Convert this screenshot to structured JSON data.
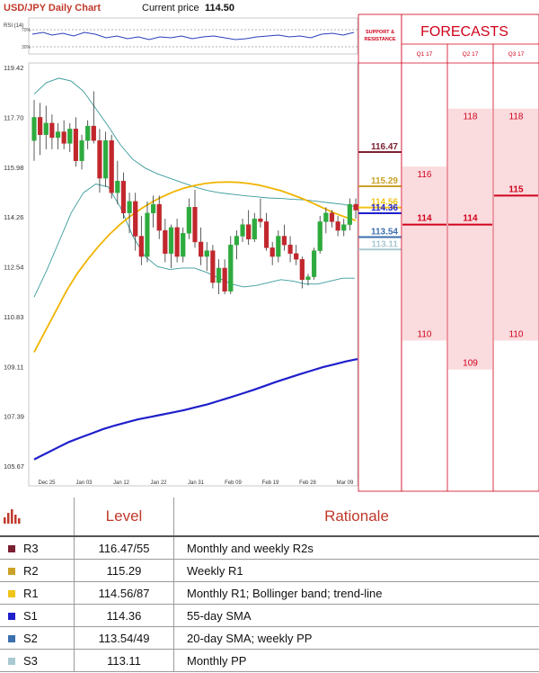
{
  "header": {
    "pair_title": "USD/JPY Daily Chart",
    "price_label": "Current price",
    "price_value": "114.50"
  },
  "rsi": {
    "label": "RSI (14)",
    "level_high": "70%",
    "level_low": "30%"
  },
  "colors": {
    "candle_up": "#2eab3e",
    "candle_down": "#c1272d",
    "sma20": "#f0b400",
    "sma55": "#1f1fcc",
    "bollinger": "#3a9a9a",
    "r3": "#7b2031",
    "r2": "#c9a227",
    "r1": "#f0c419",
    "s1": "#1f1fcc",
    "s2": "#3b6fae",
    "s3": "#a8c8d2",
    "forecast_red": "#d0021b",
    "forecast_fill": "#fadbde"
  },
  "chart_data": {
    "type": "line",
    "title": "USD/JPY Daily Chart",
    "y_ticks": [
      "119.42",
      "117.70",
      "115.98",
      "114.26",
      "112.54",
      "110.83",
      "109.11",
      "107.39",
      "105.67"
    ],
    "ylim": [
      105.67,
      119.42
    ],
    "x_ticks": [
      "Dec 25",
      "Jan 03",
      "Jan 12",
      "Jan 22",
      "Jan 31",
      "Feb 09",
      "Feb 19",
      "Feb 28",
      "Mar 09"
    ],
    "candles": [
      {
        "o": 116.9,
        "h": 118.3,
        "l": 116.2,
        "c": 117.7
      },
      {
        "o": 117.7,
        "h": 118.2,
        "l": 116.4,
        "c": 117.1
      },
      {
        "o": 117.1,
        "h": 118.1,
        "l": 116.6,
        "c": 117.5
      },
      {
        "o": 117.5,
        "h": 117.8,
        "l": 116.6,
        "c": 117.0
      },
      {
        "o": 117.0,
        "h": 117.5,
        "l": 116.6,
        "c": 117.2
      },
      {
        "o": 117.2,
        "h": 117.6,
        "l": 116.6,
        "c": 116.8
      },
      {
        "o": 116.8,
        "h": 117.5,
        "l": 116.5,
        "c": 117.3
      },
      {
        "o": 117.3,
        "h": 117.7,
        "l": 116.0,
        "c": 116.2
      },
      {
        "o": 116.2,
        "h": 117.1,
        "l": 115.9,
        "c": 116.9
      },
      {
        "o": 116.9,
        "h": 117.6,
        "l": 116.6,
        "c": 117.4
      },
      {
        "o": 117.4,
        "h": 118.6,
        "l": 116.8,
        "c": 116.9
      },
      {
        "o": 116.9,
        "h": 117.3,
        "l": 115.1,
        "c": 115.6
      },
      {
        "o": 115.6,
        "h": 117.2,
        "l": 115.3,
        "c": 116.9
      },
      {
        "o": 116.9,
        "h": 117.1,
        "l": 114.9,
        "c": 115.1
      },
      {
        "o": 115.1,
        "h": 116.2,
        "l": 114.7,
        "c": 115.5
      },
      {
        "o": 115.5,
        "h": 115.8,
        "l": 114.2,
        "c": 114.4
      },
      {
        "o": 114.4,
        "h": 115.1,
        "l": 113.7,
        "c": 114.8
      },
      {
        "o": 114.8,
        "h": 115.1,
        "l": 113.1,
        "c": 113.6
      },
      {
        "o": 113.6,
        "h": 114.3,
        "l": 112.6,
        "c": 112.9
      },
      {
        "o": 112.9,
        "h": 114.8,
        "l": 112.7,
        "c": 114.4
      },
      {
        "o": 114.4,
        "h": 115.0,
        "l": 113.9,
        "c": 114.7
      },
      {
        "o": 114.7,
        "h": 115.0,
        "l": 113.5,
        "c": 113.8
      },
      {
        "o": 113.8,
        "h": 114.2,
        "l": 112.7,
        "c": 113.0
      },
      {
        "o": 113.0,
        "h": 114.0,
        "l": 112.5,
        "c": 113.9
      },
      {
        "o": 113.9,
        "h": 114.2,
        "l": 112.7,
        "c": 112.9
      },
      {
        "o": 112.9,
        "h": 113.9,
        "l": 112.7,
        "c": 113.7
      },
      {
        "o": 113.7,
        "h": 114.9,
        "l": 113.5,
        "c": 114.6
      },
      {
        "o": 114.6,
        "h": 115.2,
        "l": 113.2,
        "c": 113.4
      },
      {
        "o": 113.4,
        "h": 113.9,
        "l": 112.6,
        "c": 112.9
      },
      {
        "o": 112.9,
        "h": 113.4,
        "l": 112.4,
        "c": 113.1
      },
      {
        "o": 113.1,
        "h": 113.3,
        "l": 111.8,
        "c": 112.0
      },
      {
        "o": 112.0,
        "h": 112.8,
        "l": 111.6,
        "c": 112.5
      },
      {
        "o": 112.5,
        "h": 112.8,
        "l": 111.6,
        "c": 111.7
      },
      {
        "o": 111.7,
        "h": 113.6,
        "l": 111.6,
        "c": 113.3
      },
      {
        "o": 113.3,
        "h": 113.8,
        "l": 112.8,
        "c": 113.6
      },
      {
        "o": 113.6,
        "h": 114.2,
        "l": 113.4,
        "c": 114.0
      },
      {
        "o": 114.0,
        "h": 114.5,
        "l": 113.3,
        "c": 113.5
      },
      {
        "o": 113.5,
        "h": 114.4,
        "l": 113.4,
        "c": 114.2
      },
      {
        "o": 114.2,
        "h": 114.9,
        "l": 113.9,
        "c": 114.1
      },
      {
        "o": 114.1,
        "h": 114.4,
        "l": 113.1,
        "c": 113.2
      },
      {
        "o": 113.2,
        "h": 113.4,
        "l": 112.6,
        "c": 112.9
      },
      {
        "o": 112.9,
        "h": 113.8,
        "l": 112.7,
        "c": 113.6
      },
      {
        "o": 113.6,
        "h": 114.0,
        "l": 113.1,
        "c": 113.3
      },
      {
        "o": 113.3,
        "h": 113.6,
        "l": 112.7,
        "c": 113.0
      },
      {
        "o": 113.0,
        "h": 113.3,
        "l": 112.6,
        "c": 112.8
      },
      {
        "o": 112.8,
        "h": 112.9,
        "l": 111.8,
        "c": 112.1
      },
      {
        "o": 112.1,
        "h": 112.3,
        "l": 111.9,
        "c": 112.2
      },
      {
        "o": 112.2,
        "h": 113.2,
        "l": 112.1,
        "c": 113.1
      },
      {
        "o": 113.1,
        "h": 114.3,
        "l": 113.0,
        "c": 114.1
      },
      {
        "o": 114.1,
        "h": 114.6,
        "l": 113.7,
        "c": 114.4
      },
      {
        "o": 114.4,
        "h": 114.5,
        "l": 113.9,
        "c": 114.1
      },
      {
        "o": 114.1,
        "h": 114.3,
        "l": 113.6,
        "c": 113.8
      },
      {
        "o": 113.8,
        "h": 114.2,
        "l": 113.6,
        "c": 114.0
      },
      {
        "o": 114.0,
        "h": 114.9,
        "l": 113.8,
        "c": 114.7
      },
      {
        "o": 114.7,
        "h": 114.9,
        "l": 114.2,
        "c": 114.5
      }
    ],
    "sma20": [
      109.6,
      110.3,
      111.0,
      111.7,
      112.3,
      112.8,
      113.25,
      113.65,
      114.0,
      114.3,
      114.55,
      114.78,
      114.97,
      115.13,
      115.26,
      115.35,
      115.42,
      115.46,
      115.47,
      115.46,
      115.42,
      115.36,
      115.27,
      115.17,
      115.04,
      114.9,
      114.74,
      114.57,
      114.4,
      114.26,
      114.14
    ],
    "sma55": [
      105.9,
      106.1,
      106.3,
      106.5,
      106.65,
      106.8,
      106.95,
      107.07,
      107.18,
      107.28,
      107.36,
      107.44,
      107.52,
      107.6,
      107.7,
      107.8,
      107.92,
      108.04,
      108.17,
      108.3,
      108.44,
      108.58,
      108.71,
      108.84,
      108.96,
      109.08,
      109.18,
      109.28,
      109.36
    ],
    "bb_upper": [
      118.5,
      118.9,
      119.05,
      118.95,
      118.6,
      118.0,
      117.4,
      116.75,
      116.25,
      115.95,
      115.75,
      115.6,
      115.45,
      115.3,
      115.18,
      115.1,
      115.05,
      115.0,
      114.96,
      114.92,
      114.9,
      114.87,
      114.85,
      114.8,
      114.75,
      114.7,
      114.62
    ],
    "bb_lower": [
      111.5,
      112.4,
      113.4,
      114.4,
      115.1,
      115.4,
      115.3,
      114.6,
      113.6,
      112.9,
      112.55,
      112.45,
      112.5,
      112.5,
      112.35,
      112.15,
      111.95,
      111.85,
      111.9,
      112.0,
      112.1,
      112.05,
      111.95,
      111.95,
      112.05,
      112.15,
      112.15
    ],
    "sr_levels": [
      {
        "label": "116.47",
        "value": 116.47,
        "key": "r3"
      },
      {
        "label": "115.29",
        "value": 115.29,
        "key": "r2"
      },
      {
        "label": "114.56",
        "value": 114.56,
        "key": "r1"
      },
      {
        "label": "114.36",
        "value": 114.36,
        "key": "s1"
      },
      {
        "label": "113.54",
        "value": 113.54,
        "key": "s2"
      },
      {
        "label": "113.11",
        "value": 113.11,
        "key": "s3"
      }
    ]
  },
  "panel": {
    "sr_title_line1": "SUPPORT &",
    "sr_title_line2": "RESISTANCE",
    "forecasts_title": "FORECASTS"
  },
  "forecasts": [
    {
      "quarter": "Q1 17",
      "high": "116",
      "mid": "114",
      "low": "110",
      "high_v": 116,
      "mid_v": 114,
      "low_v": 110
    },
    {
      "quarter": "Q2 17",
      "high": "118",
      "mid": "114",
      "low": "109",
      "high_v": 118,
      "mid_v": 114,
      "low_v": 109
    },
    {
      "quarter": "Q3 17",
      "high": "118",
      "mid": "115",
      "low": "110",
      "high_v": 118,
      "mid_v": 115,
      "low_v": 110
    }
  ],
  "table": {
    "col_level": "Level",
    "col_rationale": "Rationale",
    "rows": [
      {
        "name": "R3",
        "level": "116.47/55",
        "rationale": "Monthly and weekly R2s",
        "key": "r3"
      },
      {
        "name": "R2",
        "level": "115.29",
        "rationale": "Weekly R1",
        "key": "r2"
      },
      {
        "name": "R1",
        "level": "114.56/87",
        "rationale": "Monthly R1; Bollinger band; trend-line",
        "key": "r1"
      },
      {
        "name": "S1",
        "level": "114.36",
        "rationale": "55-day SMA",
        "key": "s1"
      },
      {
        "name": "S2",
        "level": "113.54/49",
        "rationale": "20-day SMA; weekly PP",
        "key": "s2"
      },
      {
        "name": "S3",
        "level": "113.11",
        "rationale": "Monthly PP",
        "key": "s3"
      }
    ]
  }
}
